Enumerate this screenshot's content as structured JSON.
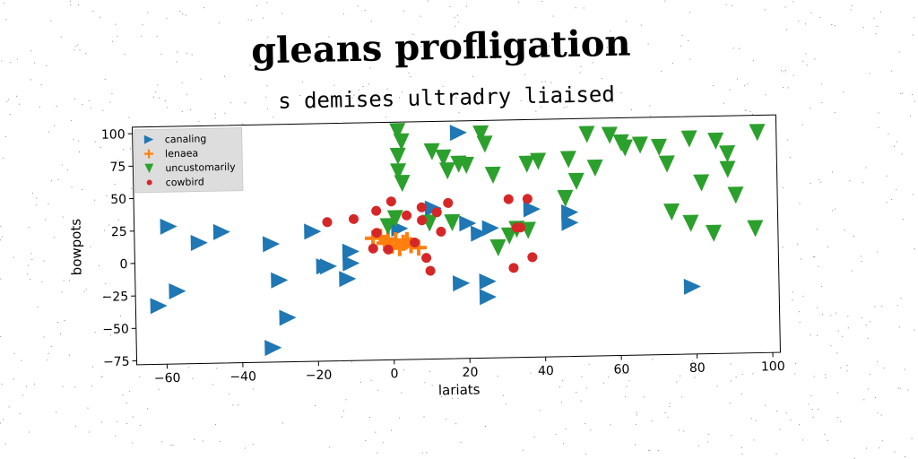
{
  "title": "gleans profligation",
  "subtitle": "s demises ultradry liaised",
  "colors": {
    "canaling": "#1f77b4",
    "lenaea": "#ff7f0e",
    "uncustomarily": "#2ca02c",
    "cowbird": "#d62728"
  },
  "chart_data": {
    "type": "scatter",
    "xlabel": "lariats",
    "ylabel": "bowpots",
    "xlim": [
      -68,
      102
    ],
    "ylim": [
      -78,
      105
    ],
    "xticks": [
      -60,
      -40,
      -20,
      0,
      20,
      40,
      60,
      80,
      100
    ],
    "yticks": [
      -75,
      -50,
      -25,
      0,
      25,
      50,
      75,
      100
    ],
    "grid": false,
    "legend_position": "top-left",
    "series": [
      {
        "name": "canaling",
        "marker": "triangle-right",
        "points": [
          [
            -59,
            28
          ],
          [
            -51,
            15
          ],
          [
            -45,
            23
          ],
          [
            -57,
            -22
          ],
          [
            -62,
            -33
          ],
          [
            -32,
            13
          ],
          [
            -30,
            -15
          ],
          [
            -28,
            -44
          ],
          [
            -32,
            -67
          ],
          [
            -21,
            22
          ],
          [
            -17,
            -5
          ],
          [
            -11,
            6
          ],
          [
            -11,
            -3
          ],
          [
            -12,
            -15
          ],
          [
            2,
            23
          ],
          [
            11,
            38
          ],
          [
            18,
            96
          ],
          [
            20,
            26
          ],
          [
            23,
            18
          ],
          [
            26,
            22
          ],
          [
            18,
            -20
          ],
          [
            25,
            -19
          ],
          [
            25,
            -31
          ],
          [
            37,
            36
          ],
          [
            47,
            33
          ],
          [
            47,
            25
          ],
          [
            79,
            -26
          ],
          [
            -18,
            -5
          ]
        ]
      },
      {
        "name": "lenaea",
        "marker": "plus",
        "points": [
          [
            -5,
            16
          ],
          [
            -3,
            17
          ],
          [
            -1,
            15
          ],
          [
            1,
            14
          ],
          [
            3,
            12
          ],
          [
            5,
            10
          ],
          [
            7,
            8
          ],
          [
            -2,
            12
          ],
          [
            0,
            10
          ],
          [
            2,
            8
          ],
          [
            4,
            14
          ]
        ]
      },
      {
        "name": "uncustomarily",
        "marker": "triangle-down",
        "points": [
          [
            2,
            98
          ],
          [
            3,
            90
          ],
          [
            2,
            79
          ],
          [
            2,
            67
          ],
          [
            3,
            58
          ],
          [
            1,
            31
          ],
          [
            11,
            82
          ],
          [
            14,
            77
          ],
          [
            15,
            67
          ],
          [
            18,
            72
          ],
          [
            20,
            71
          ],
          [
            24,
            95
          ],
          [
            25,
            87
          ],
          [
            27,
            63
          ],
          [
            36,
            71
          ],
          [
            39,
            73
          ],
          [
            46,
            44
          ],
          [
            52,
            93
          ],
          [
            54,
            67
          ],
          [
            49,
            57
          ],
          [
            47,
            74
          ],
          [
            58,
            92
          ],
          [
            61,
            86
          ],
          [
            62,
            82
          ],
          [
            66,
            84
          ],
          [
            71,
            82
          ],
          [
            73,
            69
          ],
          [
            79,
            88
          ],
          [
            82,
            54
          ],
          [
            86,
            86
          ],
          [
            89,
            76
          ],
          [
            89,
            64
          ],
          [
            91,
            44
          ],
          [
            97,
            92
          ],
          [
            96,
            18
          ],
          [
            85,
            15
          ],
          [
            79,
            23
          ],
          [
            74,
            32
          ],
          [
            36,
            20
          ],
          [
            33,
            21
          ],
          [
            31,
            16
          ],
          [
            28,
            7
          ],
          [
            16,
            27
          ],
          [
            10,
            27
          ],
          [
            -1,
            25
          ]
        ]
      },
      {
        "name": "cowbird",
        "marker": "circle",
        "points": [
          [
            -17,
            29
          ],
          [
            -10,
            31
          ],
          [
            -4,
            37
          ],
          [
            0,
            44
          ],
          [
            4,
            33
          ],
          [
            8,
            29
          ],
          [
            8,
            39
          ],
          [
            12,
            35
          ],
          [
            13,
            20
          ],
          [
            15,
            42
          ],
          [
            -4,
            20
          ],
          [
            -5,
            8
          ],
          [
            -1,
            7
          ],
          [
            6,
            12
          ],
          [
            9,
            0
          ],
          [
            10,
            -10
          ],
          [
            31,
            44
          ],
          [
            36,
            44
          ],
          [
            33,
            22
          ],
          [
            37,
            -1
          ],
          [
            32,
            -9
          ],
          [
            34,
            22
          ]
        ]
      }
    ]
  }
}
